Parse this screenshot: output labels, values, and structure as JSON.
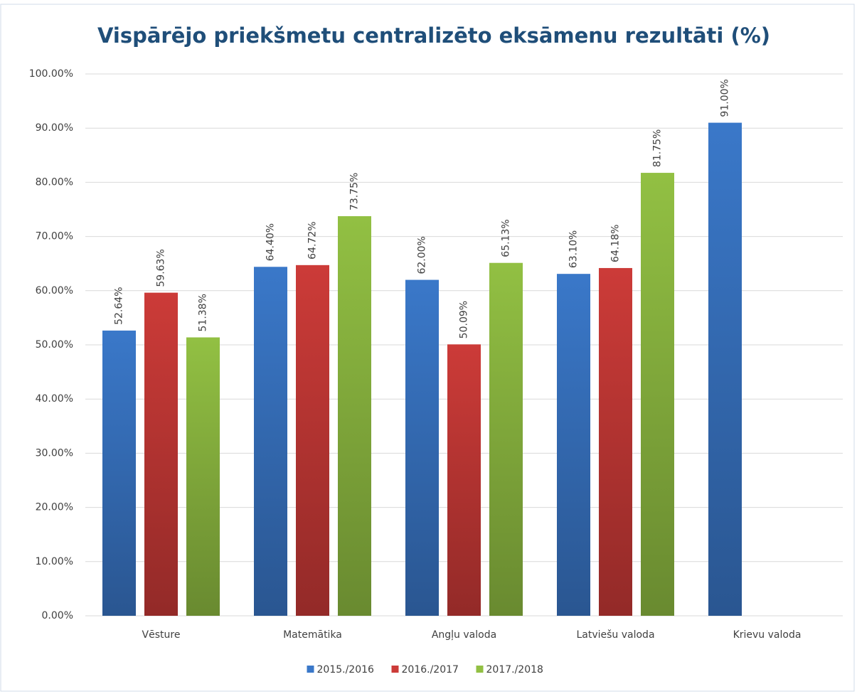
{
  "chart_data": {
    "type": "bar",
    "title": "Vispārējo priekšmetu centralizēto eksāmenu rezultāti (%)",
    "categories": [
      "Vēsture",
      "Matemātika",
      "Angļu valoda",
      "Latviešu valoda",
      "Krievu valoda"
    ],
    "series": [
      {
        "name": "2015./2016",
        "color": "#3a78c9",
        "values": [
          52.64,
          64.4,
          62,
          63.1,
          91
        ],
        "value_labels": [
          "52.64%",
          "64.40%",
          "62.00%",
          "63.10%",
          "91.00%"
        ]
      },
      {
        "name": "2016./2017",
        "color": "#cc3b38",
        "values": [
          59.63,
          64.72,
          50.09,
          64.18,
          null
        ],
        "value_labels": [
          "59.63%",
          "64.72%",
          "50.09%",
          "64.18%",
          null
        ]
      },
      {
        "name": "2017./2018",
        "color": "#92c043",
        "values": [
          51.38,
          73.75,
          65.13,
          81.75,
          null
        ],
        "value_labels": [
          "51.38%",
          "73.75%",
          "65.13%",
          "81.75%",
          null
        ]
      }
    ],
    "ylim": [
      0,
      100
    ],
    "yticks": [
      {
        "value": 0,
        "label": "0.00%"
      },
      {
        "value": 10,
        "label": "10.00%"
      },
      {
        "value": 20,
        "label": "20.00%"
      },
      {
        "value": 30,
        "label": "30.00%"
      },
      {
        "value": 40,
        "label": "40.00%"
      },
      {
        "value": 50,
        "label": "50.00%"
      },
      {
        "value": 60,
        "label": "60.00%"
      },
      {
        "value": 70,
        "label": "70.00%"
      },
      {
        "value": 80,
        "label": "80.00%"
      },
      {
        "value": 90,
        "label": "90.00%"
      },
      {
        "value": 100,
        "label": "100.00%"
      }
    ],
    "grid": true,
    "legend": "bottom"
  }
}
